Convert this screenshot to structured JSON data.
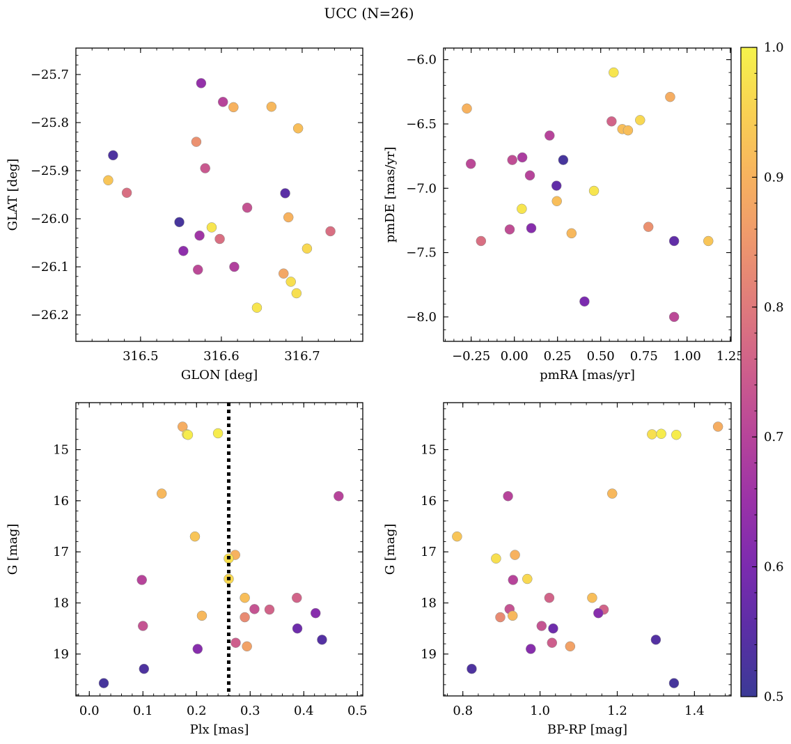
{
  "figure": {
    "title": "UCC (N=26)"
  },
  "colorbar": {
    "vmin": 0.5,
    "vmax": 1.0,
    "ticks": [
      "0.5",
      "0.6",
      "0.7",
      "0.8",
      "0.9",
      "1.0"
    ],
    "colormap": "plasma"
  },
  "chart_data": [
    {
      "type": "scatter",
      "xlabel": "GLON [deg]",
      "ylabel": "GLAT [deg]",
      "xlim": [
        316.42,
        316.775
      ],
      "ylim": [
        -26.255,
        -25.645
      ],
      "y_inverted": false,
      "xticks": [
        "316.5",
        "316.6",
        "316.7"
      ],
      "yticks": [
        "−25.7",
        "−25.8",
        "−25.9",
        "−26.0",
        "−26.1",
        "−26.2"
      ],
      "points": [
        {
          "x": 316.575,
          "y": -25.718,
          "p": 0.64
        },
        {
          "x": 316.602,
          "y": -25.757,
          "p": 0.7
        },
        {
          "x": 316.615,
          "y": -25.768,
          "p": 0.9
        },
        {
          "x": 316.662,
          "y": -25.767,
          "p": 0.91
        },
        {
          "x": 316.695,
          "y": -25.812,
          "p": 0.92
        },
        {
          "x": 316.466,
          "y": -25.868,
          "p": 0.53
        },
        {
          "x": 316.569,
          "y": -25.84,
          "p": 0.84
        },
        {
          "x": 316.58,
          "y": -25.895,
          "p": 0.74
        },
        {
          "x": 316.46,
          "y": -25.92,
          "p": 0.93
        },
        {
          "x": 316.483,
          "y": -25.946,
          "p": 0.78
        },
        {
          "x": 316.679,
          "y": -25.947,
          "p": 0.55
        },
        {
          "x": 316.632,
          "y": -25.977,
          "p": 0.73
        },
        {
          "x": 316.683,
          "y": -25.997,
          "p": 0.9
        },
        {
          "x": 316.548,
          "y": -26.007,
          "p": 0.52
        },
        {
          "x": 316.588,
          "y": -26.018,
          "p": 0.98
        },
        {
          "x": 316.573,
          "y": -26.035,
          "p": 0.66
        },
        {
          "x": 316.598,
          "y": -26.042,
          "p": 0.78
        },
        {
          "x": 316.735,
          "y": -26.026,
          "p": 0.78
        },
        {
          "x": 316.553,
          "y": -26.067,
          "p": 0.63
        },
        {
          "x": 316.706,
          "y": -26.062,
          "p": 0.96
        },
        {
          "x": 316.571,
          "y": -26.106,
          "p": 0.71
        },
        {
          "x": 316.616,
          "y": -26.1,
          "p": 0.69
        },
        {
          "x": 316.677,
          "y": -26.114,
          "p": 0.88
        },
        {
          "x": 316.686,
          "y": -26.131,
          "p": 0.97
        },
        {
          "x": 316.693,
          "y": -26.155,
          "p": 0.97
        },
        {
          "x": 316.644,
          "y": -26.185,
          "p": 0.98
        }
      ]
    },
    {
      "type": "scatter",
      "xlabel": "pmRA [mas/yr]",
      "ylabel": "pmDE [mas/yr]",
      "xlim": [
        -0.41,
        1.255
      ],
      "ylim": [
        -8.19,
        -5.91
      ],
      "y_inverted": false,
      "xticks": [
        "−0.25",
        "0.00",
        "0.25",
        "0.50",
        "0.75",
        "1.00",
        "1.25"
      ],
      "yticks": [
        "−6.0",
        "−6.5",
        "−7.0",
        "−7.5",
        "−8.0"
      ],
      "points": [
        {
          "x": 0.575,
          "y": -6.1,
          "p": 0.98
        },
        {
          "x": -0.275,
          "y": -6.38,
          "p": 0.9
        },
        {
          "x": 0.902,
          "y": -6.29,
          "p": 0.89
        },
        {
          "x": 0.563,
          "y": -6.48,
          "p": 0.76
        },
        {
          "x": 0.625,
          "y": -6.54,
          "p": 0.92
        },
        {
          "x": 0.658,
          "y": -6.55,
          "p": 0.92
        },
        {
          "x": 0.728,
          "y": -6.47,
          "p": 0.96
        },
        {
          "x": 0.204,
          "y": -6.59,
          "p": 0.7
        },
        {
          "x": -0.252,
          "y": -6.81,
          "p": 0.71
        },
        {
          "x": -0.012,
          "y": -6.78,
          "p": 0.72
        },
        {
          "x": 0.046,
          "y": -6.76,
          "p": 0.68
        },
        {
          "x": 0.09,
          "y": -6.9,
          "p": 0.7
        },
        {
          "x": 0.283,
          "y": -6.78,
          "p": 0.52
        },
        {
          "x": 0.244,
          "y": -6.98,
          "p": 0.56
        },
        {
          "x": 0.461,
          "y": -7.02,
          "p": 0.98
        },
        {
          "x": 0.246,
          "y": -7.1,
          "p": 0.92
        },
        {
          "x": 0.043,
          "y": -7.16,
          "p": 0.98
        },
        {
          "x": -0.027,
          "y": -7.32,
          "p": 0.72
        },
        {
          "x": 0.098,
          "y": -7.31,
          "p": 0.62
        },
        {
          "x": 0.331,
          "y": -7.35,
          "p": 0.91
        },
        {
          "x": 0.776,
          "y": -7.3,
          "p": 0.84
        },
        {
          "x": -0.193,
          "y": -7.41,
          "p": 0.78
        },
        {
          "x": 0.925,
          "y": -7.41,
          "p": 0.56
        },
        {
          "x": 1.123,
          "y": -7.41,
          "p": 0.93
        },
        {
          "x": 0.406,
          "y": -7.88,
          "p": 0.6
        },
        {
          "x": 0.925,
          "y": -8.0,
          "p": 0.71
        }
      ]
    },
    {
      "type": "scatter",
      "xlabel": "Plx [mas]",
      "ylabel": "G [mag]",
      "xlim": [
        -0.025,
        0.51
      ],
      "ylim": [
        19.82,
        14.08
      ],
      "y_inverted": true,
      "xticks": [
        "0.0",
        "0.1",
        "0.2",
        "0.3",
        "0.4",
        "0.5"
      ],
      "yticks": [
        "15",
        "16",
        "17",
        "18",
        "19"
      ],
      "vline": {
        "x": 0.26,
        "style": "dotted"
      },
      "points": [
        {
          "x": 0.174,
          "y": 14.55,
          "p": 0.89
        },
        {
          "x": 0.182,
          "y": 14.7,
          "p": 0.97
        },
        {
          "x": 0.184,
          "y": 14.71,
          "p": 0.99
        },
        {
          "x": 0.24,
          "y": 14.68,
          "p": 0.99
        },
        {
          "x": 0.135,
          "y": 15.86,
          "p": 0.91
        },
        {
          "x": 0.465,
          "y": 15.91,
          "p": 0.7
        },
        {
          "x": 0.197,
          "y": 16.7,
          "p": 0.93
        },
        {
          "x": 0.272,
          "y": 17.06,
          "p": 0.9
        },
        {
          "x": 0.26,
          "y": 17.13,
          "p": 0.97
        },
        {
          "x": 0.26,
          "y": 17.53,
          "p": 0.96
        },
        {
          "x": 0.098,
          "y": 17.55,
          "p": 0.7
        },
        {
          "x": 0.29,
          "y": 17.9,
          "p": 0.92
        },
        {
          "x": 0.387,
          "y": 17.9,
          "p": 0.76
        },
        {
          "x": 0.308,
          "y": 18.12,
          "p": 0.73
        },
        {
          "x": 0.336,
          "y": 18.13,
          "p": 0.76
        },
        {
          "x": 0.422,
          "y": 18.2,
          "p": 0.62
        },
        {
          "x": 0.21,
          "y": 18.25,
          "p": 0.91
        },
        {
          "x": 0.29,
          "y": 18.28,
          "p": 0.83
        },
        {
          "x": 0.1,
          "y": 18.45,
          "p": 0.73
        },
        {
          "x": 0.388,
          "y": 18.5,
          "p": 0.58
        },
        {
          "x": 0.434,
          "y": 18.72,
          "p": 0.54
        },
        {
          "x": 0.273,
          "y": 18.78,
          "p": 0.75
        },
        {
          "x": 0.294,
          "y": 18.85,
          "p": 0.87
        },
        {
          "x": 0.202,
          "y": 18.9,
          "p": 0.62
        },
        {
          "x": 0.102,
          "y": 19.29,
          "p": 0.53
        },
        {
          "x": 0.027,
          "y": 19.57,
          "p": 0.52
        }
      ]
    },
    {
      "type": "scatter",
      "xlabel": "BP-RP [mag]",
      "ylabel": "G [mag]",
      "xlim": [
        0.75,
        1.495
      ],
      "ylim": [
        19.82,
        14.08
      ],
      "y_inverted": true,
      "xticks": [
        "0.8",
        "1.0",
        "1.2",
        "1.4"
      ],
      "yticks": [
        "15",
        "16",
        "17",
        "18",
        "19"
      ],
      "points": [
        {
          "x": 1.461,
          "y": 14.55,
          "p": 0.89
        },
        {
          "x": 1.29,
          "y": 14.7,
          "p": 0.97
        },
        {
          "x": 1.314,
          "y": 14.69,
          "p": 0.99
        },
        {
          "x": 1.353,
          "y": 14.71,
          "p": 0.99
        },
        {
          "x": 1.187,
          "y": 15.86,
          "p": 0.91
        },
        {
          "x": 0.917,
          "y": 15.91,
          "p": 0.7
        },
        {
          "x": 0.785,
          "y": 16.7,
          "p": 0.93
        },
        {
          "x": 0.886,
          "y": 17.13,
          "p": 0.97
        },
        {
          "x": 0.935,
          "y": 17.06,
          "p": 0.9
        },
        {
          "x": 0.967,
          "y": 17.53,
          "p": 0.96
        },
        {
          "x": 0.93,
          "y": 17.55,
          "p": 0.7
        },
        {
          "x": 1.024,
          "y": 17.9,
          "p": 0.76
        },
        {
          "x": 1.135,
          "y": 17.9,
          "p": 0.92
        },
        {
          "x": 0.921,
          "y": 18.12,
          "p": 0.73
        },
        {
          "x": 1.165,
          "y": 18.13,
          "p": 0.76
        },
        {
          "x": 1.151,
          "y": 18.2,
          "p": 0.62
        },
        {
          "x": 0.897,
          "y": 18.28,
          "p": 0.83
        },
        {
          "x": 0.929,
          "y": 18.25,
          "p": 0.91
        },
        {
          "x": 1.004,
          "y": 18.45,
          "p": 0.73
        },
        {
          "x": 1.034,
          "y": 18.5,
          "p": 0.58
        },
        {
          "x": 1.031,
          "y": 18.78,
          "p": 0.75
        },
        {
          "x": 1.078,
          "y": 18.85,
          "p": 0.87
        },
        {
          "x": 0.976,
          "y": 18.9,
          "p": 0.62
        },
        {
          "x": 1.3,
          "y": 18.72,
          "p": 0.54
        },
        {
          "x": 0.823,
          "y": 19.29,
          "p": 0.53
        },
        {
          "x": 1.347,
          "y": 19.57,
          "p": 0.52
        }
      ]
    }
  ]
}
